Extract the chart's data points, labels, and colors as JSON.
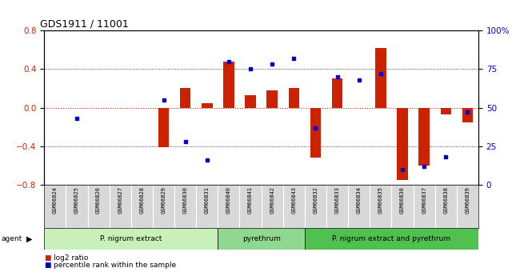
{
  "title": "GDS1911 / 11001",
  "samples": [
    "GSM66824",
    "GSM66825",
    "GSM66826",
    "GSM66827",
    "GSM66828",
    "GSM66829",
    "GSM66830",
    "GSM66831",
    "GSM66840",
    "GSM66841",
    "GSM66842",
    "GSM66843",
    "GSM66832",
    "GSM66833",
    "GSM66834",
    "GSM66835",
    "GSM66836",
    "GSM66837",
    "GSM66838",
    "GSM66839"
  ],
  "log2_ratio": [
    0.0,
    0.0,
    0.0,
    0.0,
    0.0,
    -0.41,
    0.2,
    0.05,
    0.48,
    0.13,
    0.18,
    0.2,
    -0.52,
    0.3,
    0.0,
    0.62,
    -0.75,
    -0.6,
    -0.07,
    -0.15
  ],
  "pct_rank": [
    null,
    43,
    null,
    null,
    null,
    55,
    28,
    16,
    80,
    75,
    78,
    82,
    37,
    70,
    68,
    72,
    10,
    12,
    18,
    47
  ],
  "groups": [
    {
      "label": "P. nigrum extract",
      "start": 0,
      "end": 7,
      "color": "#c8f0b8"
    },
    {
      "label": "pyrethrum",
      "start": 8,
      "end": 11,
      "color": "#90d890"
    },
    {
      "label": "P. nigrum extract and pyrethrum",
      "start": 12,
      "end": 19,
      "color": "#50c050"
    }
  ],
  "ylim": [
    -0.8,
    0.8
  ],
  "pct_ylim": [
    0,
    100
  ],
  "bar_color": "#cc2200",
  "pct_color": "#0000cc",
  "bg_color": "#ffffff",
  "zero_line_color": "#cc2200",
  "dotted_color": "#111111",
  "label_bg_color": "#d8d8d8"
}
